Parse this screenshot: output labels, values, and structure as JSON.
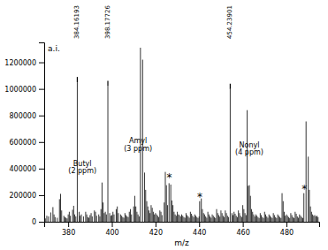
{
  "chart_data": {
    "type": "stem",
    "title": "",
    "xlabel": "m/z",
    "ylabel": "a.i.",
    "xlim": [
      369,
      495
    ],
    "ylim": [
      0,
      1350000
    ],
    "xticks": [
      380,
      400,
      420,
      440,
      460,
      480
    ],
    "yticks": [
      0,
      200000,
      400000,
      600000,
      800000,
      1000000,
      1200000
    ],
    "color": "#000000",
    "x": [
      369.5,
      370.2,
      371.0,
      372.0,
      373.0,
      373.5,
      374.0,
      375.0,
      376.0,
      376.5,
      377.0,
      378.0,
      378.5,
      379.0,
      379.5,
      380.0,
      380.5,
      381.0,
      382.0,
      382.5,
      383.0,
      383.5,
      384.16193,
      385.0,
      385.5,
      386.0,
      387.0,
      388.0,
      388.5,
      389.0,
      389.5,
      390.0,
      390.5,
      391.0,
      392.0,
      392.5,
      393.0,
      394.0,
      394.5,
      395.0,
      395.5,
      396.0,
      396.5,
      397.0,
      397.5,
      398.17726,
      399.0,
      399.5,
      400.0,
      400.5,
      401.0,
      402.0,
      402.5,
      403.0,
      404.0,
      404.5,
      405.0,
      405.5,
      406.0,
      406.5,
      407.0,
      407.5,
      408.0,
      408.5,
      409.0,
      410.0,
      410.5,
      411.0,
      411.5,
      412.0,
      412.5,
      413.1,
      414.1,
      415.0,
      415.5,
      416.0,
      416.5,
      417.0,
      417.5,
      418.0,
      418.5,
      419.0,
      419.5,
      420.0,
      420.5,
      421.0,
      421.5,
      422.0,
      422.5,
      423.0,
      424.0,
      424.5,
      425.0,
      425.5,
      426.21,
      427.0,
      427.5,
      428.0,
      428.5,
      429.0,
      429.5,
      430.0,
      430.5,
      431.0,
      431.5,
      432.0,
      432.5,
      433.0,
      433.5,
      434.0,
      434.5,
      435.0,
      435.5,
      436.0,
      436.5,
      437.0,
      437.5,
      438.0,
      438.5,
      439.0,
      439.5,
      440.0,
      440.23,
      441.0,
      441.5,
      442.0,
      442.5,
      443.0,
      443.5,
      444.0,
      444.5,
      445.0,
      445.5,
      446.0,
      446.5,
      447.0,
      447.5,
      448.0,
      448.5,
      449.0,
      449.5,
      450.0,
      450.5,
      451.0,
      451.5,
      452.0,
      452.5,
      453.0,
      453.5,
      454.23901,
      455.0,
      455.5,
      456.0,
      456.5,
      457.0,
      457.5,
      458.0,
      458.5,
      459.0,
      459.5,
      460.0,
      460.5,
      461.0,
      461.5,
      462.0,
      462.5,
      463.0,
      463.5,
      464.0,
      464.5,
      465.0,
      465.5,
      466.0,
      466.5,
      467.0,
      467.5,
      468.0,
      468.5,
      469.0,
      469.5,
      470.0,
      470.5,
      471.0,
      471.5,
      472.0,
      472.5,
      473.0,
      473.5,
      474.0,
      474.5,
      475.0,
      475.5,
      476.0,
      476.5,
      477.0,
      477.5,
      478.0,
      478.5,
      479.0,
      479.5,
      480.0,
      480.5,
      481.0,
      481.5,
      482.0,
      482.5,
      483.0,
      483.5,
      484.0,
      484.5,
      485.0,
      485.5,
      486.0,
      486.5,
      487.0,
      487.5,
      488.0,
      489.0,
      490.0,
      490.5,
      491.0,
      491.5,
      492.0,
      492.5,
      493.0,
      493.5,
      494.0,
      494.5
    ],
    "values": [
      25000,
      45000,
      40000,
      70000,
      110000,
      55000,
      35000,
      30000,
      170000,
      210000,
      85000,
      45000,
      35000,
      30000,
      25000,
      55000,
      75000,
      45000,
      90000,
      120000,
      55000,
      40000,
      1050000,
      75000,
      45000,
      55000,
      40000,
      75000,
      55000,
      35000,
      30000,
      50000,
      65000,
      40000,
      85000,
      75000,
      45000,
      55000,
      40000,
      95000,
      295000,
      145000,
      65000,
      75000,
      55000,
      1020000,
      65000,
      45000,
      50000,
      75000,
      55000,
      95000,
      115000,
      65000,
      55000,
      45000,
      35000,
      30000,
      65000,
      50000,
      40000,
      35000,
      75000,
      95000,
      55000,
      115000,
      195000,
      115000,
      75000,
      55000,
      40000,
      1310000,
      1220000,
      370000,
      240000,
      155000,
      115000,
      85000,
      65000,
      125000,
      105000,
      75000,
      55000,
      65000,
      55000,
      45000,
      35000,
      85000,
      75000,
      50000,
      145000,
      375000,
      275000,
      125000,
      290000,
      280000,
      160000,
      125000,
      75000,
      55000,
      45000,
      75000,
      55000,
      50000,
      40000,
      55000,
      45000,
      35000,
      30000,
      65000,
      50000,
      40000,
      30000,
      75000,
      60000,
      45000,
      35000,
      55000,
      45000,
      35000,
      28000,
      40000,
      155000,
      175000,
      95000,
      65000,
      55000,
      40000,
      30000,
      75000,
      55000,
      40000,
      30000,
      55000,
      45000,
      35000,
      28000,
      95000,
      65000,
      50000,
      38000,
      85000,
      65000,
      45000,
      35000,
      85000,
      65000,
      45000,
      35000,
      1000000,
      65000,
      50000,
      75000,
      60000,
      45000,
      35000,
      85000,
      65000,
      45000,
      35000,
      125000,
      95000,
      65000,
      50000,
      840000,
      270000,
      275000,
      195000,
      95000,
      75000,
      55000,
      40000,
      55000,
      45000,
      35000,
      28000,
      65000,
      50000,
      35000,
      28000,
      75000,
      55000,
      40000,
      30000,
      55000,
      45000,
      35000,
      28000,
      65000,
      50000,
      35000,
      28000,
      55000,
      45000,
      35000,
      28000,
      215000,
      155000,
      75000,
      45000,
      55000,
      45000,
      35000,
      28000,
      65000,
      50000,
      35000,
      28000,
      75000,
      60000,
      40000,
      30000,
      55000,
      45000,
      35000,
      28000,
      215000,
      755000,
      490000,
      240000,
      115000,
      75000,
      55000,
      45000,
      50000,
      40000,
      45000,
      35000
    ],
    "peak_annotations": [
      {
        "x": 384.16193,
        "y": 1050000,
        "text": "384.16193"
      },
      {
        "x": 398.17726,
        "y": 1020000,
        "text": "398.17726"
      },
      {
        "x": 454.23901,
        "y": 1000000,
        "text": "454.23901"
      }
    ],
    "annotations": [
      {
        "x": 386.5,
        "y": 350000,
        "text": "Butyl\n(2 ppm)"
      },
      {
        "x": 412.0,
        "y": 520000,
        "text": "Amyl\n(3 ppm)"
      },
      {
        "x": 463.0,
        "y": 490000,
        "text": "Nonyl\n(4 ppm)"
      },
      {
        "x": 426.3,
        "y": 320000,
        "text": "*"
      },
      {
        "x": 440.26,
        "y": 170000,
        "text": "*"
      },
      {
        "x": 488.2,
        "y": 235000,
        "text": "*"
      }
    ]
  }
}
